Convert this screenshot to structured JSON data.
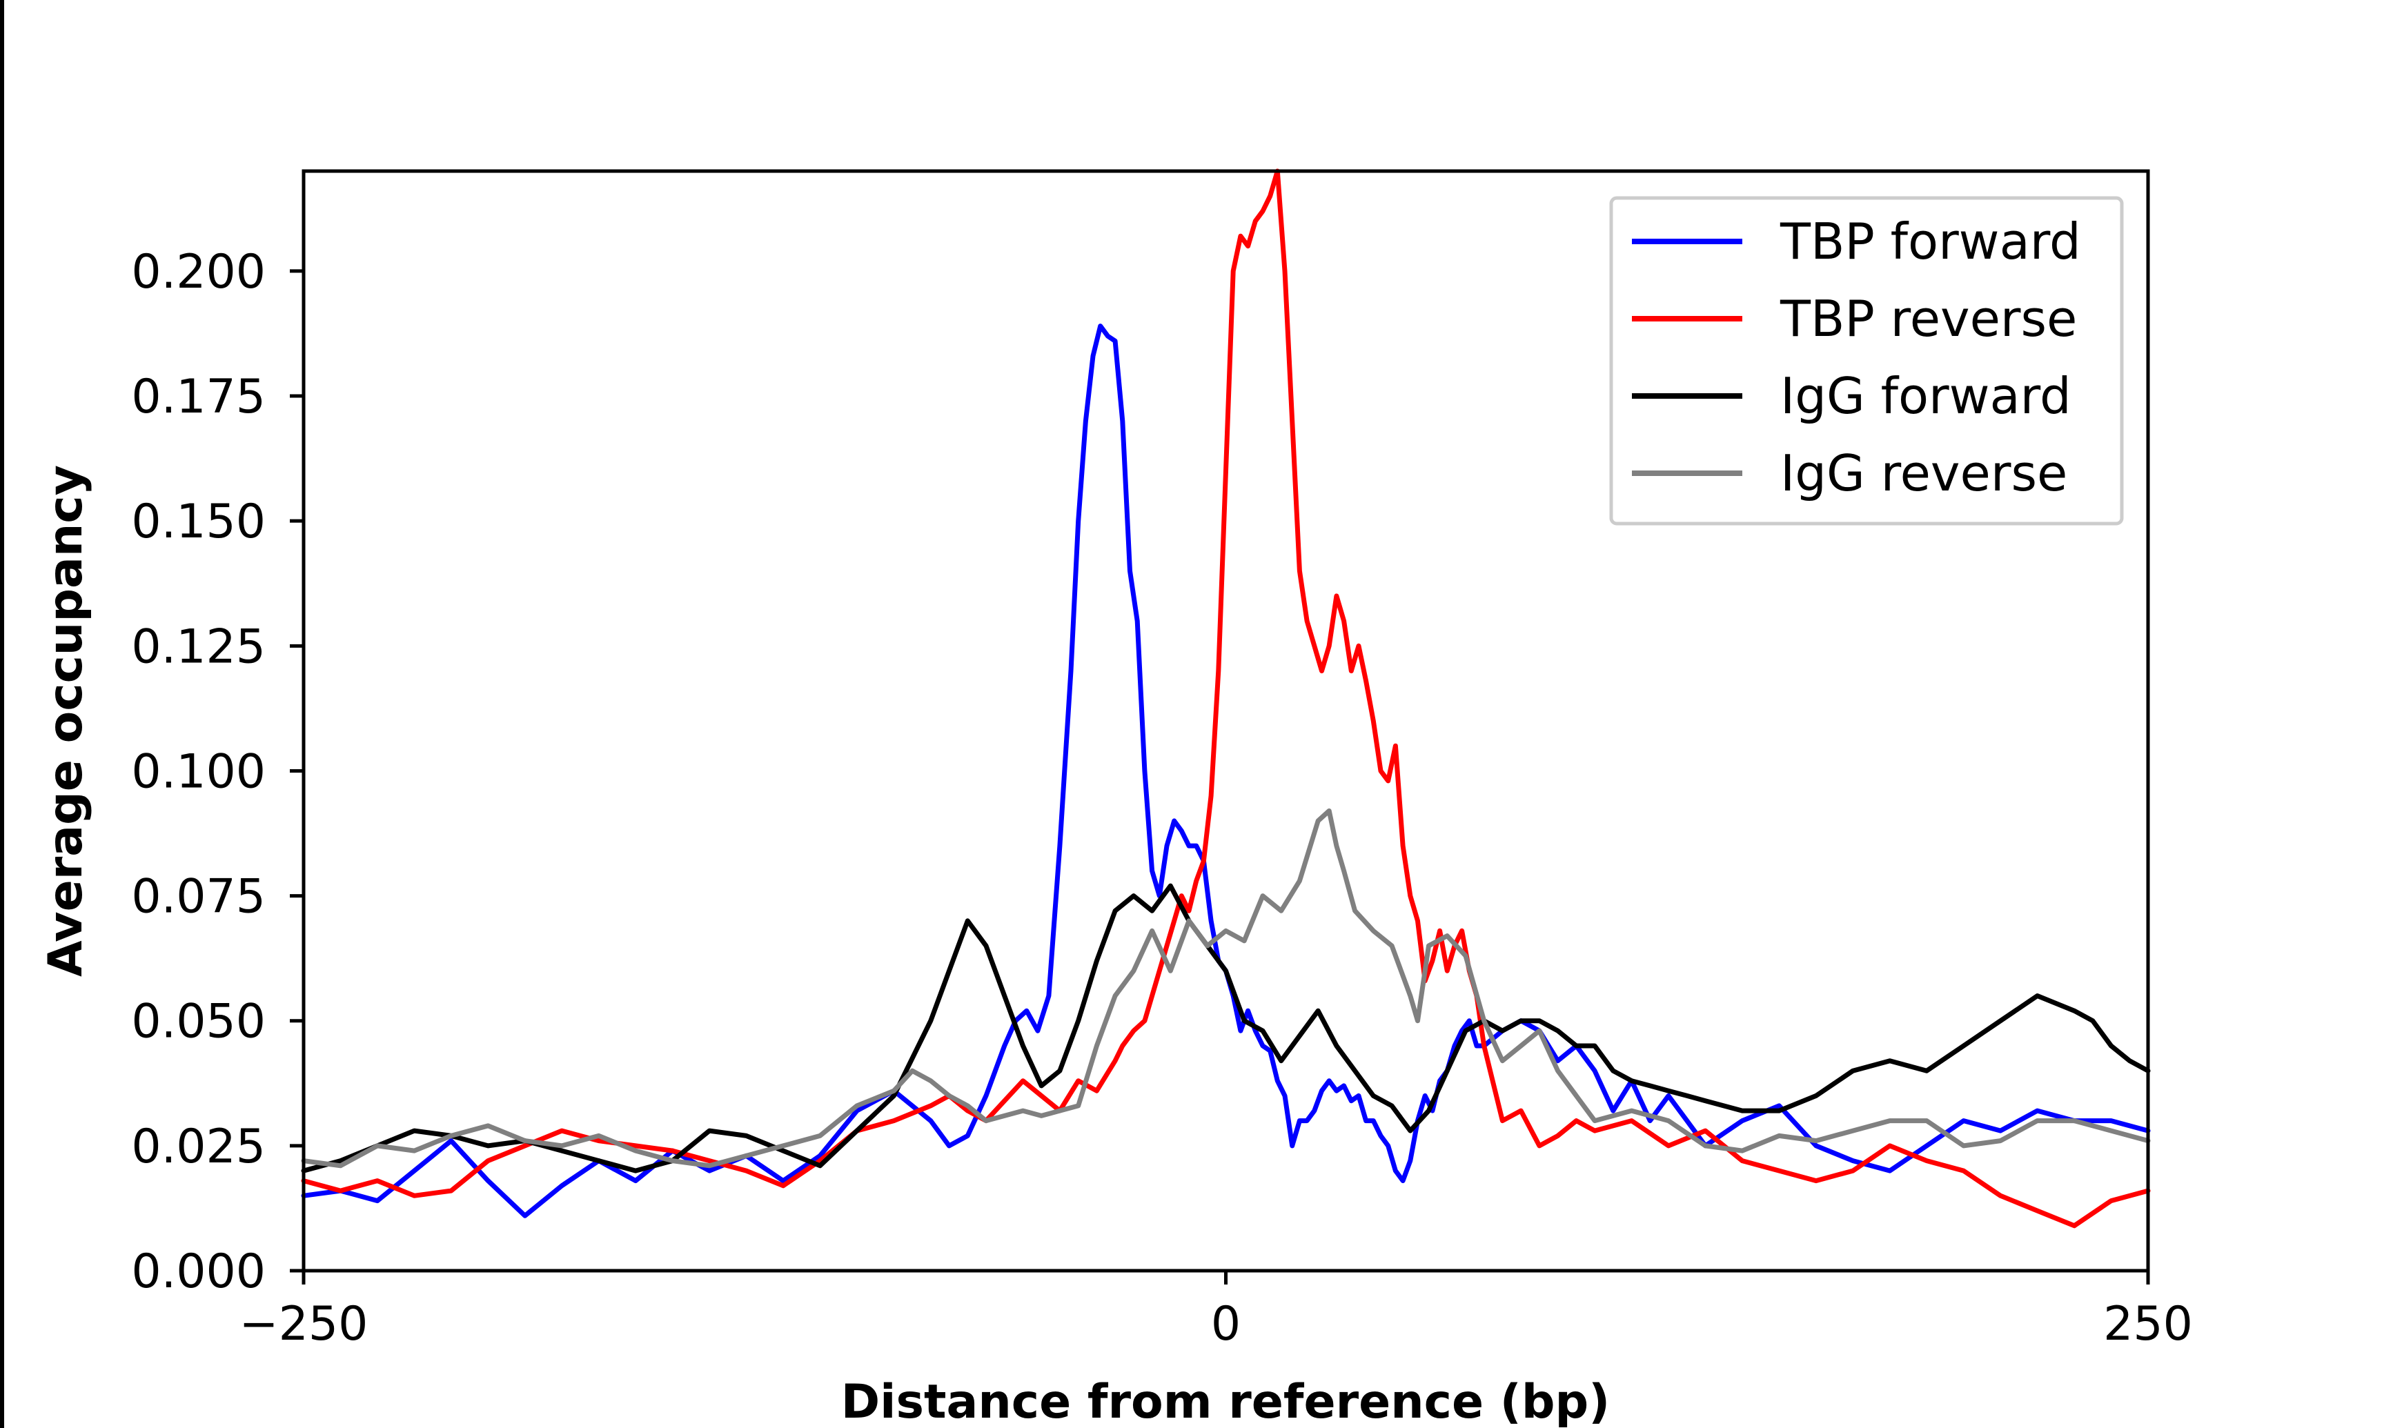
{
  "chart_data": {
    "type": "line",
    "xlabel": "Distance from reference (bp)",
    "ylabel": "Average occupancy",
    "xlim": [
      -250,
      250
    ],
    "ylim": [
      0,
      0.22
    ],
    "x_ticks": [
      -250,
      0,
      250
    ],
    "x_tick_labels": [
      "−250",
      "0",
      "250"
    ],
    "y_ticks": [
      0,
      0.025,
      0.05,
      0.075,
      0.1,
      0.125,
      0.15,
      0.175,
      0.2
    ],
    "y_tick_labels": [
      "0.000",
      "0.025",
      "0.050",
      "0.075",
      "0.100",
      "0.125",
      "0.150",
      "0.175",
      "0.200"
    ],
    "grid": false,
    "legend_position": "top-right",
    "series": [
      {
        "name": "TBP forward",
        "color": "#0000ff",
        "x": [
          -250,
          -240,
          -230,
          -220,
          -210,
          -200,
          -190,
          -180,
          -170,
          -160,
          -150,
          -140,
          -130,
          -120,
          -110,
          -100,
          -90,
          -80,
          -75,
          -70,
          -65,
          -60,
          -57,
          -54,
          -51,
          -48,
          -45,
          -42,
          -40,
          -38,
          -36,
          -34,
          -32,
          -30,
          -28,
          -26,
          -24,
          -22,
          -20,
          -18,
          -16,
          -14,
          -12,
          -10,
          -8,
          -6,
          -4,
          -2,
          0,
          2,
          4,
          6,
          8,
          10,
          12,
          14,
          16,
          18,
          20,
          22,
          24,
          26,
          28,
          30,
          32,
          34,
          36,
          38,
          40,
          42,
          44,
          46,
          48,
          50,
          52,
          54,
          56,
          58,
          60,
          62,
          64,
          66,
          68,
          70,
          75,
          80,
          85,
          90,
          95,
          100,
          105,
          110,
          115,
          120,
          125,
          130,
          140,
          150,
          160,
          170,
          180,
          190,
          200,
          210,
          220,
          230,
          240,
          250
        ],
        "y": [
          0.015,
          0.016,
          0.014,
          0.02,
          0.026,
          0.018,
          0.011,
          0.017,
          0.022,
          0.018,
          0.024,
          0.02,
          0.023,
          0.018,
          0.023,
          0.032,
          0.036,
          0.03,
          0.025,
          0.027,
          0.035,
          0.045,
          0.05,
          0.052,
          0.048,
          0.055,
          0.085,
          0.12,
          0.15,
          0.17,
          0.183,
          0.189,
          0.187,
          0.186,
          0.17,
          0.14,
          0.13,
          0.1,
          0.08,
          0.075,
          0.085,
          0.09,
          0.088,
          0.085,
          0.085,
          0.082,
          0.07,
          0.062,
          0.06,
          0.055,
          0.048,
          0.052,
          0.048,
          0.045,
          0.044,
          0.038,
          0.035,
          0.025,
          0.03,
          0.03,
          0.032,
          0.036,
          0.038,
          0.036,
          0.037,
          0.034,
          0.035,
          0.03,
          0.03,
          0.027,
          0.025,
          0.02,
          0.018,
          0.022,
          0.03,
          0.035,
          0.032,
          0.038,
          0.04,
          0.045,
          0.048,
          0.05,
          0.045,
          0.045,
          0.048,
          0.05,
          0.048,
          0.042,
          0.045,
          0.04,
          0.032,
          0.038,
          0.03,
          0.035,
          0.03,
          0.025,
          0.03,
          0.033,
          0.025,
          0.022,
          0.02,
          0.025,
          0.03,
          0.028,
          0.032,
          0.03,
          0.03,
          0.028
        ]
      },
      {
        "name": "TBP reverse",
        "color": "#ff0000",
        "x": [
          -250,
          -240,
          -230,
          -220,
          -210,
          -200,
          -190,
          -180,
          -170,
          -160,
          -150,
          -140,
          -130,
          -120,
          -110,
          -100,
          -90,
          -80,
          -75,
          -70,
          -65,
          -60,
          -55,
          -50,
          -45,
          -40,
          -35,
          -30,
          -28,
          -25,
          -22,
          -20,
          -18,
          -16,
          -14,
          -12,
          -10,
          -8,
          -6,
          -4,
          -2,
          0,
          2,
          4,
          6,
          8,
          10,
          12,
          14,
          16,
          18,
          20,
          22,
          24,
          26,
          28,
          30,
          32,
          34,
          36,
          38,
          40,
          42,
          44,
          46,
          48,
          50,
          52,
          54,
          56,
          58,
          60,
          62,
          64,
          66,
          68,
          70,
          75,
          80,
          85,
          90,
          95,
          100,
          110,
          120,
          130,
          140,
          150,
          160,
          170,
          180,
          190,
          200,
          210,
          220,
          230,
          240,
          250
        ],
        "y": [
          0.018,
          0.016,
          0.018,
          0.015,
          0.016,
          0.022,
          0.025,
          0.028,
          0.026,
          0.025,
          0.024,
          0.022,
          0.02,
          0.017,
          0.022,
          0.028,
          0.03,
          0.033,
          0.035,
          0.032,
          0.03,
          0.034,
          0.038,
          0.035,
          0.032,
          0.038,
          0.036,
          0.042,
          0.045,
          0.048,
          0.05,
          0.055,
          0.06,
          0.065,
          0.07,
          0.075,
          0.072,
          0.078,
          0.082,
          0.095,
          0.12,
          0.16,
          0.2,
          0.207,
          0.205,
          0.21,
          0.212,
          0.215,
          0.22,
          0.2,
          0.17,
          0.14,
          0.13,
          0.125,
          0.12,
          0.125,
          0.135,
          0.13,
          0.12,
          0.125,
          0.118,
          0.11,
          0.1,
          0.098,
          0.105,
          0.085,
          0.075,
          0.07,
          0.058,
          0.062,
          0.068,
          0.06,
          0.065,
          0.068,
          0.06,
          0.055,
          0.045,
          0.03,
          0.032,
          0.025,
          0.027,
          0.03,
          0.028,
          0.03,
          0.025,
          0.028,
          0.022,
          0.02,
          0.018,
          0.02,
          0.025,
          0.022,
          0.02,
          0.015,
          0.012,
          0.009,
          0.014,
          0.016
        ]
      },
      {
        "name": "IgG forward",
        "color": "#000000",
        "x": [
          -250,
          -240,
          -230,
          -220,
          -210,
          -200,
          -190,
          -180,
          -170,
          -160,
          -150,
          -140,
          -130,
          -120,
          -110,
          -100,
          -90,
          -80,
          -75,
          -70,
          -65,
          -60,
          -55,
          -50,
          -45,
          -40,
          -35,
          -30,
          -25,
          -20,
          -15,
          -10,
          -5,
          0,
          5,
          10,
          15,
          20,
          25,
          30,
          35,
          40,
          45,
          50,
          55,
          60,
          65,
          70,
          75,
          80,
          85,
          90,
          95,
          100,
          105,
          110,
          115,
          120,
          125,
          130,
          140,
          150,
          160,
          170,
          180,
          190,
          200,
          210,
          220,
          230,
          235,
          240,
          245,
          250
        ],
        "y": [
          0.02,
          0.022,
          0.025,
          0.028,
          0.027,
          0.025,
          0.026,
          0.024,
          0.022,
          0.02,
          0.022,
          0.028,
          0.027,
          0.024,
          0.021,
          0.028,
          0.035,
          0.05,
          0.06,
          0.07,
          0.065,
          0.055,
          0.045,
          0.037,
          0.04,
          0.05,
          0.062,
          0.072,
          0.075,
          0.072,
          0.077,
          0.07,
          0.065,
          0.06,
          0.05,
          0.048,
          0.042,
          0.047,
          0.052,
          0.045,
          0.04,
          0.035,
          0.033,
          0.028,
          0.032,
          0.04,
          0.048,
          0.05,
          0.048,
          0.05,
          0.05,
          0.048,
          0.045,
          0.045,
          0.04,
          0.038,
          0.037,
          0.036,
          0.035,
          0.034,
          0.032,
          0.032,
          0.035,
          0.04,
          0.042,
          0.04,
          0.045,
          0.05,
          0.055,
          0.052,
          0.05,
          0.045,
          0.042,
          0.04
        ]
      },
      {
        "name": "IgG reverse",
        "color": "#808080",
        "x": [
          -250,
          -240,
          -230,
          -220,
          -210,
          -200,
          -190,
          -180,
          -170,
          -160,
          -150,
          -140,
          -130,
          -120,
          -110,
          -100,
          -90,
          -85,
          -80,
          -75,
          -70,
          -65,
          -60,
          -55,
          -50,
          -45,
          -40,
          -35,
          -30,
          -25,
          -20,
          -15,
          -10,
          -5,
          0,
          5,
          10,
          15,
          20,
          25,
          28,
          30,
          32,
          35,
          40,
          45,
          50,
          52,
          55,
          60,
          65,
          70,
          75,
          80,
          85,
          90,
          95,
          100,
          110,
          120,
          130,
          140,
          150,
          160,
          170,
          180,
          190,
          200,
          210,
          220,
          230,
          240,
          250
        ],
        "y": [
          0.022,
          0.021,
          0.025,
          0.024,
          0.027,
          0.029,
          0.026,
          0.025,
          0.027,
          0.024,
          0.022,
          0.021,
          0.023,
          0.025,
          0.027,
          0.033,
          0.036,
          0.04,
          0.038,
          0.035,
          0.033,
          0.03,
          0.031,
          0.032,
          0.031,
          0.032,
          0.033,
          0.045,
          0.055,
          0.06,
          0.068,
          0.06,
          0.07,
          0.065,
          0.068,
          0.066,
          0.075,
          0.072,
          0.078,
          0.09,
          0.092,
          0.085,
          0.08,
          0.072,
          0.068,
          0.065,
          0.055,
          0.05,
          0.065,
          0.067,
          0.063,
          0.05,
          0.042,
          0.045,
          0.048,
          0.04,
          0.035,
          0.03,
          0.032,
          0.03,
          0.025,
          0.024,
          0.027,
          0.026,
          0.028,
          0.03,
          0.03,
          0.025,
          0.026,
          0.03,
          0.03,
          0.028,
          0.026
        ]
      }
    ]
  }
}
